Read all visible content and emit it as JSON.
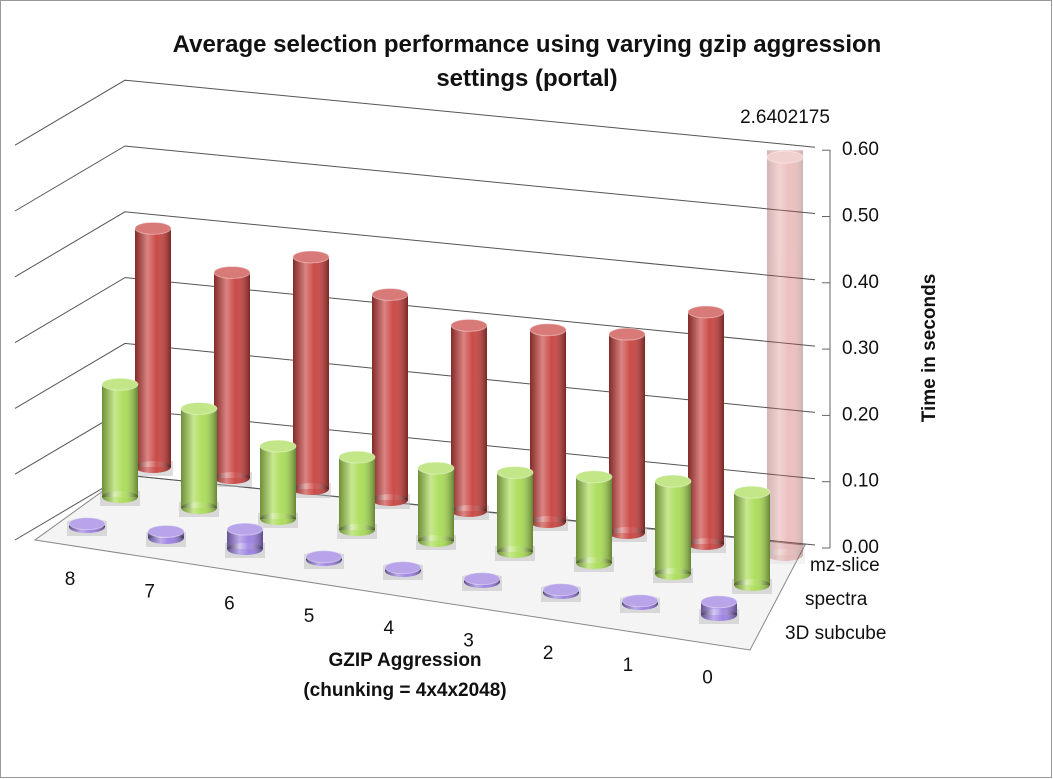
{
  "chart_data": {
    "type": "bar3d",
    "title": "Average selection performance using varying gzip aggression settings (portal)",
    "x_label": "GZIP Aggression (chunking = 4x4x2048)",
    "y_label": "Time in seconds",
    "categories": [
      "8",
      "7",
      "6",
      "5",
      "4",
      "3",
      "2",
      "1",
      "0"
    ],
    "series": [
      {
        "name": "mz-slice",
        "color": "#c8413e",
        "values": [
          0.36,
          0.31,
          0.35,
          0.31,
          0.28,
          0.29,
          0.3,
          0.35,
          2.6402175
        ]
      },
      {
        "name": "spectra",
        "color": "#a9dc55",
        "values": [
          0.17,
          0.15,
          0.11,
          0.11,
          0.11,
          0.12,
          0.13,
          0.14,
          0.14
        ]
      },
      {
        "name": "3D subcube",
        "color": "#9a7fe0",
        "values": [
          0.005,
          0.01,
          0.03,
          0.005,
          0.005,
          0.005,
          0.005,
          0.005,
          0.02
        ]
      }
    ],
    "ylim": [
      0,
      0.6
    ],
    "yticks": [
      {
        "value": 0,
        "label": "0.00"
      },
      {
        "value": 0.1,
        "label": "0.10"
      },
      {
        "value": 0.2,
        "label": "0.20"
      },
      {
        "value": 0.3,
        "label": "0.30"
      },
      {
        "value": 0.4,
        "label": "0.40"
      },
      {
        "value": 0.5,
        "label": "0.50"
      },
      {
        "value": 0.6,
        "label": "0.60"
      }
    ],
    "grid": true
  }
}
